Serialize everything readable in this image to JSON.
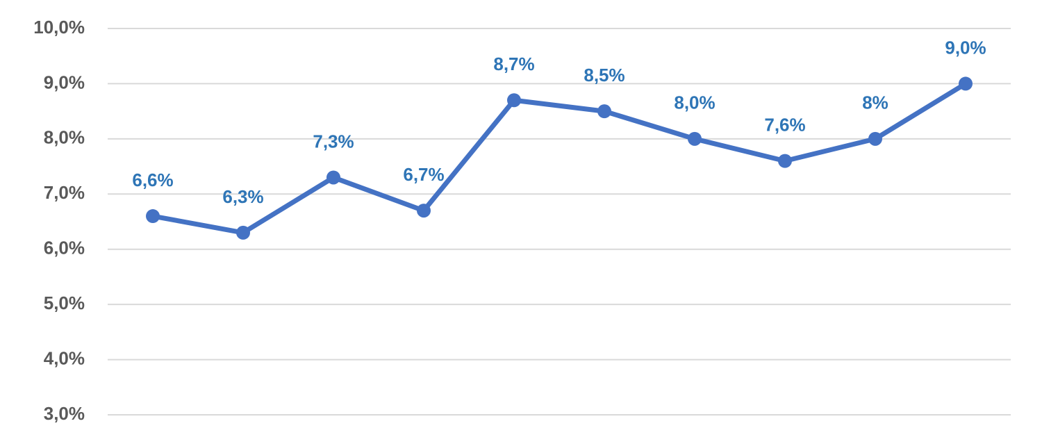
{
  "chart_data": {
    "type": "line",
    "categories": [
      null,
      null,
      null,
      null,
      null,
      null,
      null,
      null,
      null,
      null
    ],
    "series": [
      {
        "color": "#4472c4",
        "values": [
          6.6,
          6.3,
          7.3,
          6.7,
          8.7,
          8.5,
          8.0,
          7.6,
          8.0,
          9.0
        ],
        "value_labels": [
          "6,6%",
          "6,3%",
          "7,3%",
          "6,7%",
          "8,7%",
          "8,5%",
          "8,0%",
          "7,6%",
          "8%",
          "9,0%"
        ]
      }
    ],
    "ylim": [
      3,
      10
    ],
    "yticks": [
      {
        "value": 3,
        "label": "3,0%"
      },
      {
        "value": 4,
        "label": "4,0%"
      },
      {
        "value": 5,
        "label": "5,0%"
      },
      {
        "value": 6,
        "label": "6,0%"
      },
      {
        "value": 7,
        "label": "7,0%"
      },
      {
        "value": 8,
        "label": "8,0%"
      },
      {
        "value": 9,
        "label": "9,0%"
      },
      {
        "value": 10,
        "label": "10,0%"
      }
    ],
    "grid": true,
    "label_color": "#2e75b6"
  }
}
